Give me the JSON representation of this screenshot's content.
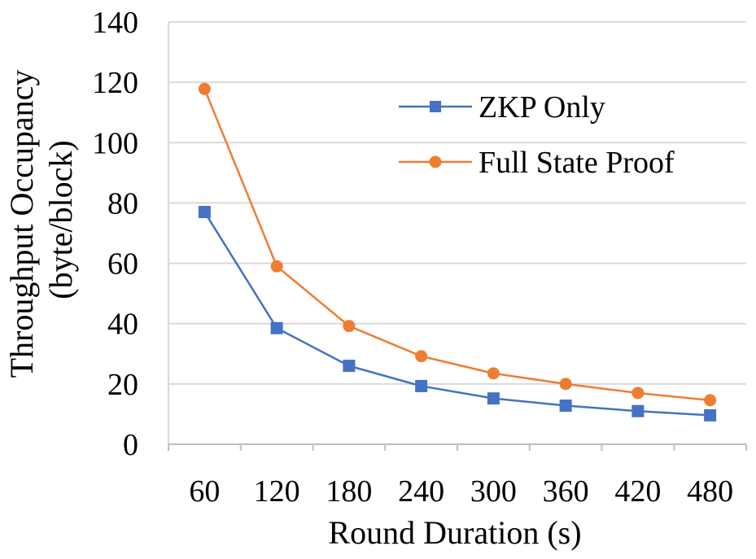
{
  "chart_data": {
    "type": "line",
    "title": "",
    "xlabel": "Round Duration (s)",
    "ylabel_lines": [
      "Throughput Occupancy",
      "(byte/block)"
    ],
    "categories": [
      "60",
      "120",
      "180",
      "240",
      "300",
      "360",
      "420",
      "480"
    ],
    "ylim": [
      0,
      140
    ],
    "yticks": [
      "0",
      "20",
      "40",
      "60",
      "80",
      "100",
      "120",
      "140"
    ],
    "grid": "horizontal",
    "legend_position": "top-right",
    "series": [
      {
        "name": "ZKP Only",
        "marker": "square",
        "color": "#4472c4",
        "values": [
          77,
          38.5,
          26,
          19.3,
          15.2,
          12.8,
          11,
          9.6
        ]
      },
      {
        "name": "Full State Proof",
        "marker": "circle",
        "color": "#ed7d31",
        "values": [
          117.8,
          59,
          39.2,
          29.2,
          23.5,
          20,
          17,
          14.6
        ]
      }
    ]
  }
}
